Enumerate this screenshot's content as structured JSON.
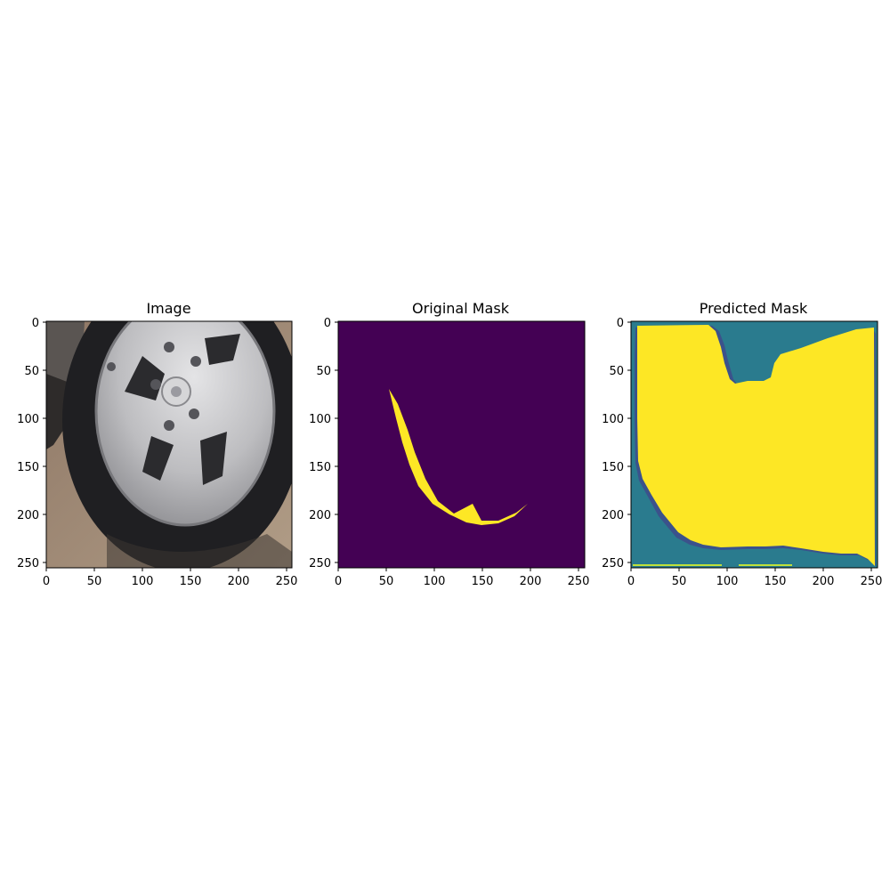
{
  "panels": [
    {
      "title": "Image",
      "kind": "photo",
      "x_ticks": [
        "0",
        "50",
        "100",
        "150",
        "200",
        "250"
      ],
      "y_ticks": [
        "0",
        "50",
        "100",
        "150",
        "200",
        "250"
      ]
    },
    {
      "title": "Original Mask",
      "kind": "binary-mask",
      "x_ticks": [
        "0",
        "50",
        "100",
        "150",
        "200",
        "250"
      ],
      "y_ticks": [
        "0",
        "50",
        "100",
        "150",
        "200",
        "250"
      ]
    },
    {
      "title": "Predicted Mask",
      "kind": "predicted-mask",
      "x_ticks": [
        "0",
        "50",
        "100",
        "150",
        "200",
        "250"
      ],
      "y_ticks": [
        "0",
        "50",
        "100",
        "150",
        "200",
        "250"
      ]
    }
  ],
  "colors": {
    "mask_background": "#440154",
    "mask_foreground": "#fde725",
    "mask_mid": "#2a7b8e",
    "mask_dark": "#3b528b",
    "photo_ground": "#a08a74",
    "photo_tire": "#1f1f22",
    "photo_rim": "#c9c9cb"
  }
}
